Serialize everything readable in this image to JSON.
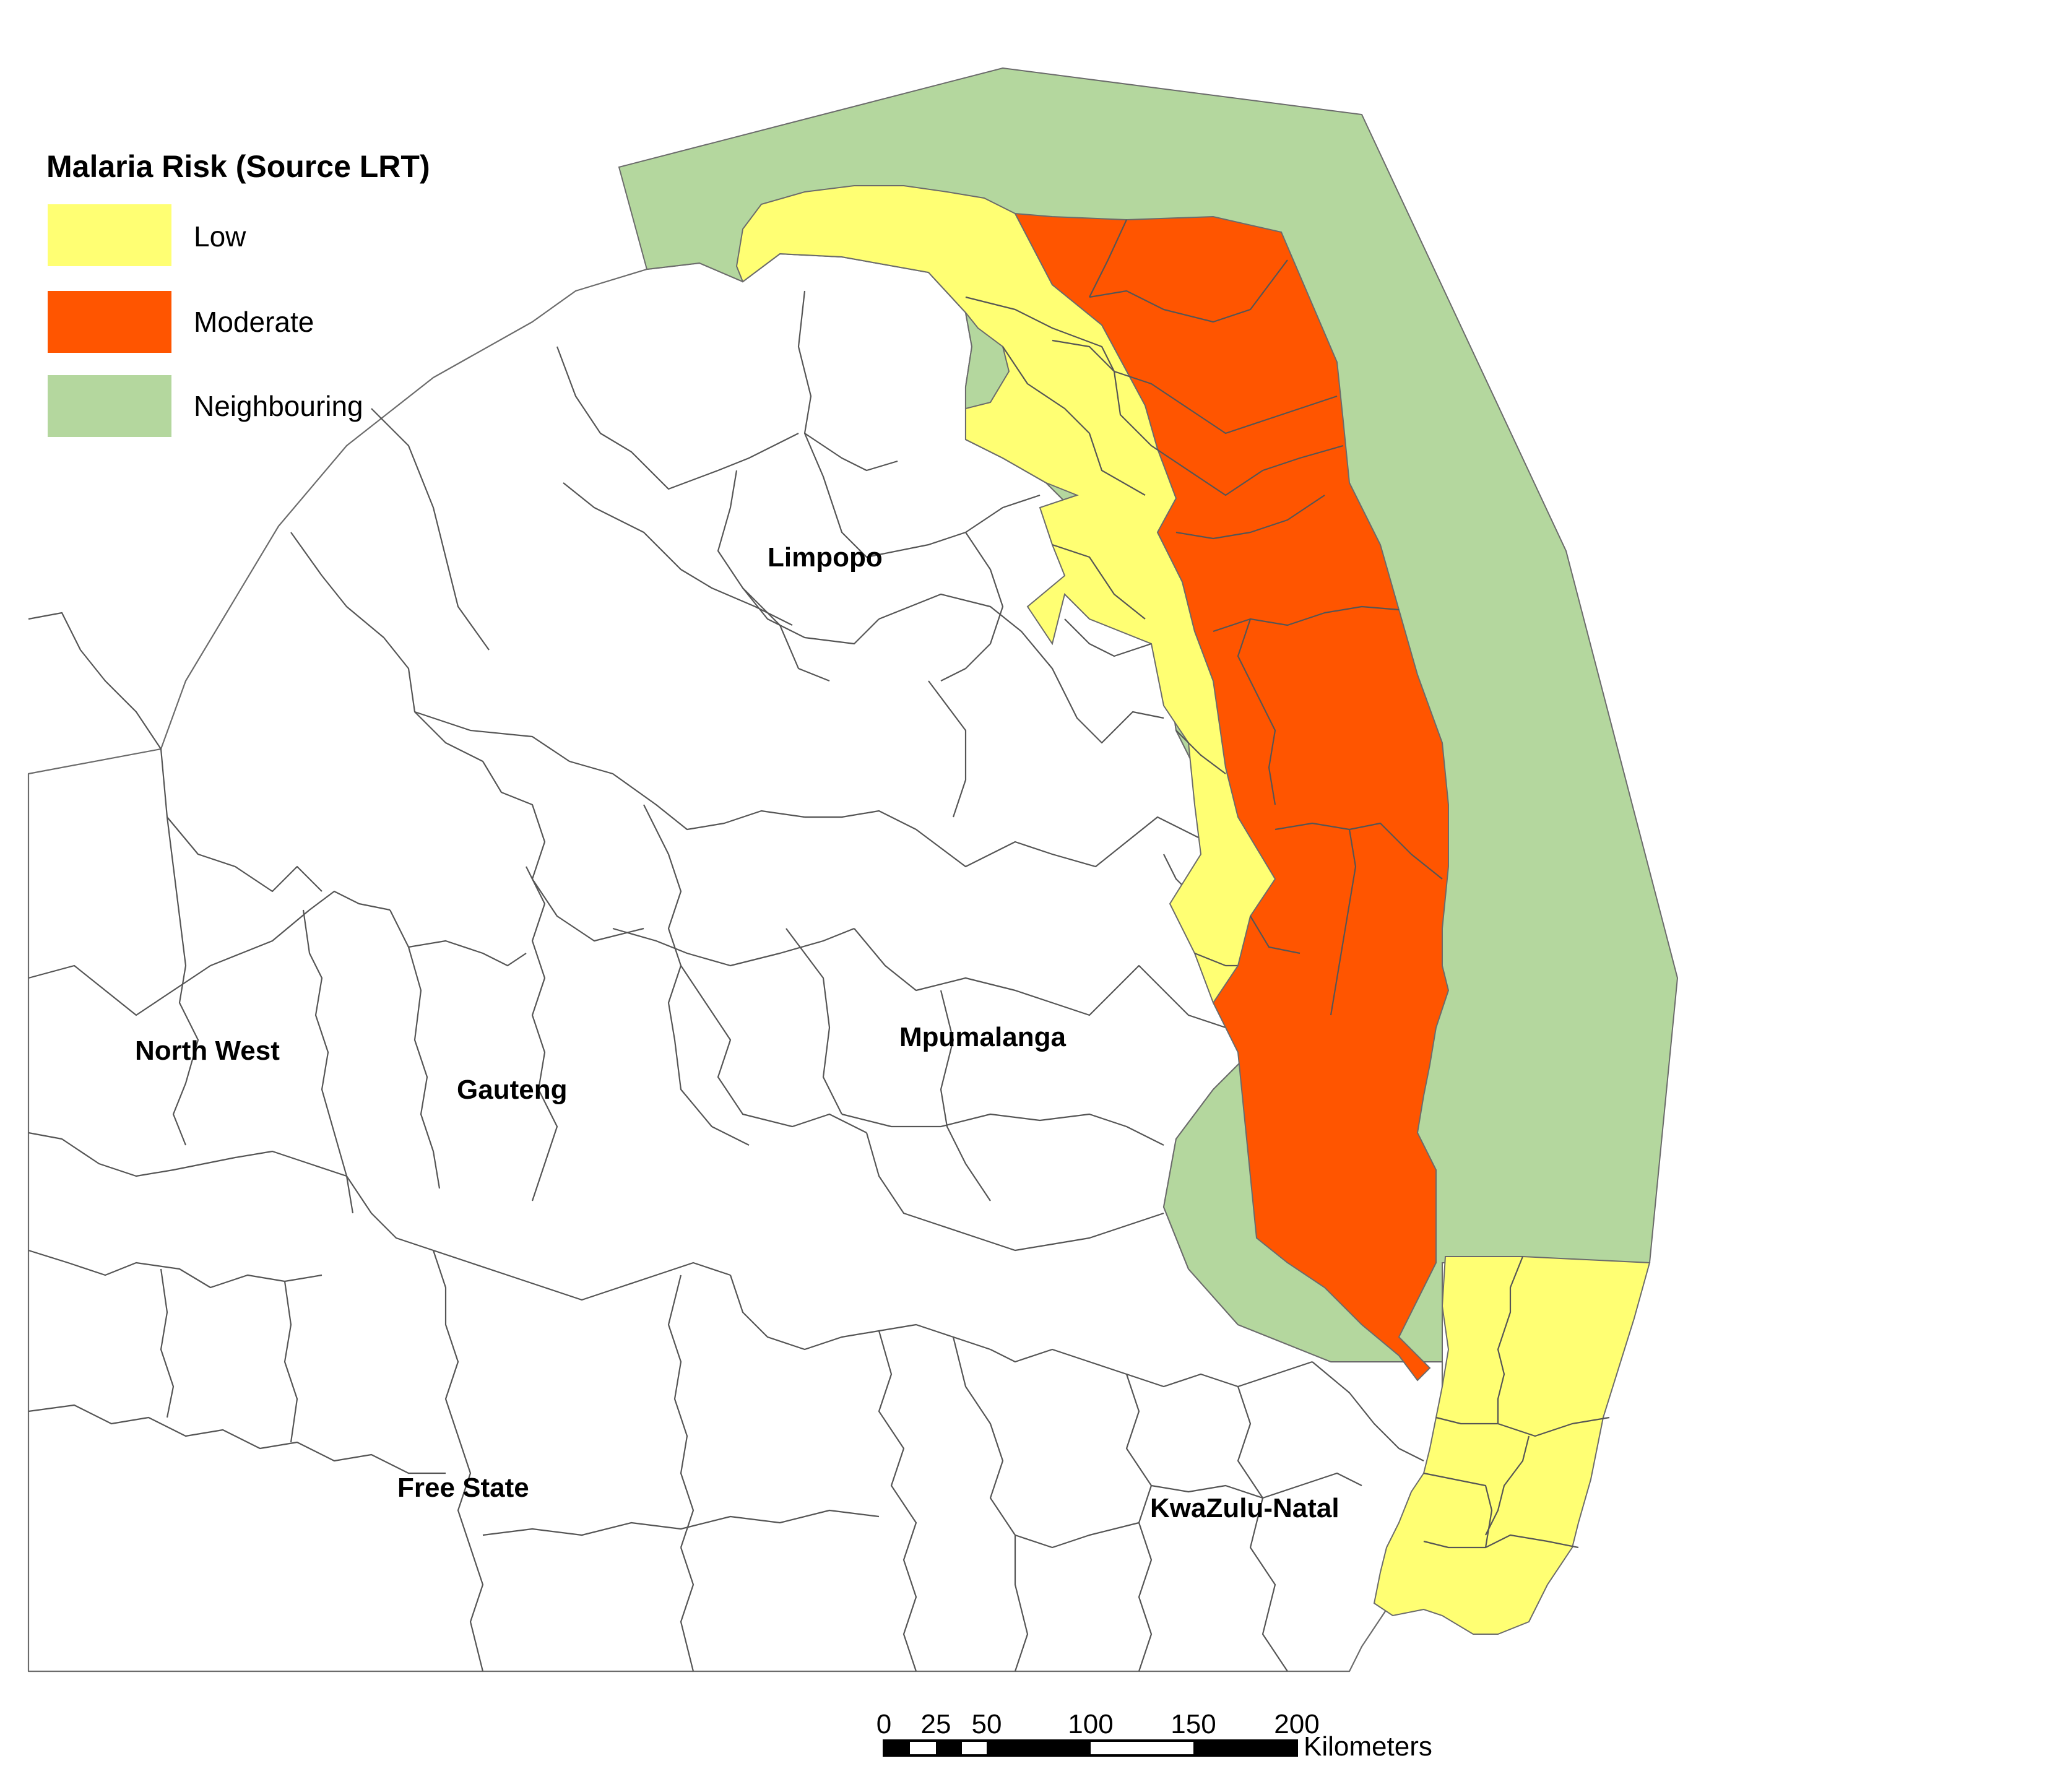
{
  "legend": {
    "title": "Malaria Risk (Source LRT)",
    "items": [
      {
        "label": "Low",
        "color": "#ffff73"
      },
      {
        "label": "Moderate",
        "color": "#ff5500"
      },
      {
        "label": "Neighbouring",
        "color": "#b4d79e"
      }
    ]
  },
  "regions": {
    "limpopo": "Limpopo",
    "mpumalanga": "Mpumalanga",
    "north_west": "North West",
    "gauteng": "Gauteng",
    "free_state": "Free State",
    "kwazulu_natal": "KwaZulu-Natal"
  },
  "scale_bar": {
    "ticks": [
      "0",
      "25",
      "50",
      "100",
      "150",
      "200"
    ],
    "unit": "Kilometers"
  },
  "colors": {
    "boundary": "#6b6b6b",
    "background": "#ffffff"
  }
}
